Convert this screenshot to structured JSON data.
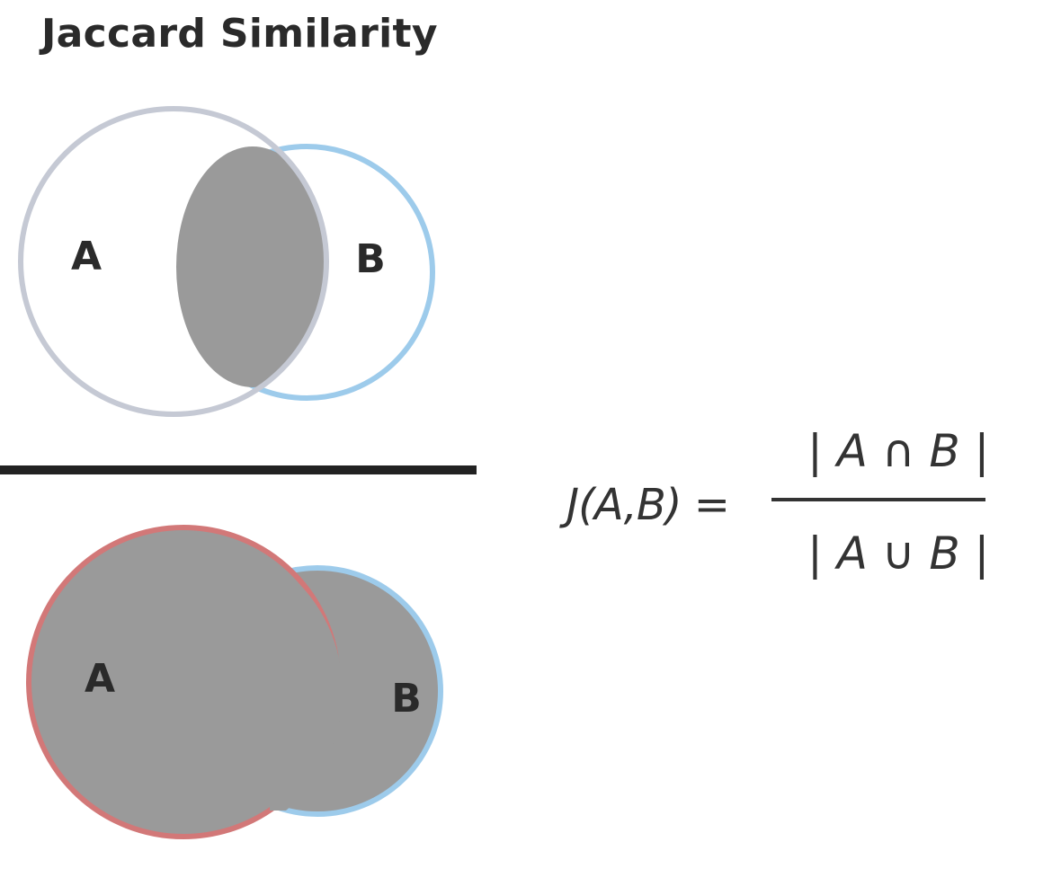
{
  "title": "Jaccard Similarity",
  "intersection_diagram": {
    "label_a": "A",
    "label_b": "B",
    "colors": {
      "circle_a_stroke": "#c5c9d4",
      "circle_b_stroke": "#9dcbeb",
      "fill": "#9a9a9a"
    }
  },
  "union_diagram": {
    "label_a": "A",
    "label_b": "B",
    "colors": {
      "circle_a_stroke": "#d27878",
      "circle_b_stroke": "#9dcbeb",
      "fill": "#9a9a9a"
    }
  },
  "formula": {
    "lhs": "J(A,B) =",
    "numerator": "| A ∩ B |",
    "denominator": "| A ∪ B |"
  }
}
